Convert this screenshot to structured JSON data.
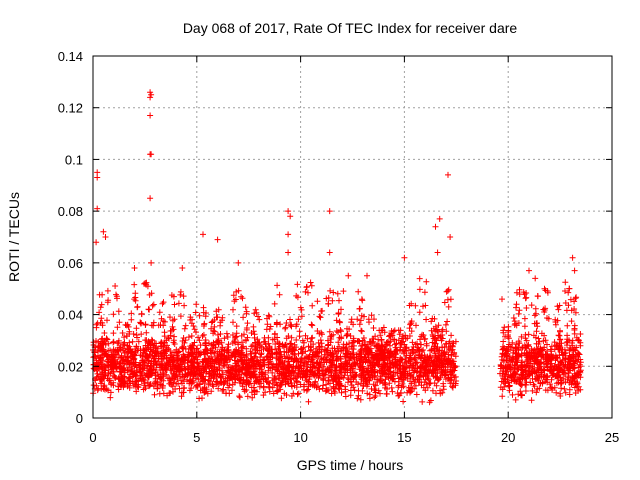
{
  "chart_data": {
    "type": "scatter",
    "title": "Day 068 of 2017, Rate Of TEC Index for receiver dare",
    "xlabel": "GPS time / hours",
    "ylabel": "ROTI / TECUs",
    "xlim": [
      0,
      25
    ],
    "ylim": [
      0,
      0.14
    ],
    "xticks": [
      "0",
      "5",
      "10",
      "15",
      "20",
      "25"
    ],
    "yticks": [
      "0",
      "0.02",
      "0.04",
      "0.06",
      "0.08",
      "0.1",
      "0.12",
      "0.14"
    ],
    "grid": true,
    "marker": "+",
    "color": "#ff0000",
    "data_gap_hours": [
      17.5,
      19.6
    ],
    "dense_band": {
      "y_low": 0.005,
      "y_high": 0.03
    },
    "notable_points": [
      {
        "x": 0.2,
        "y": 0.095
      },
      {
        "x": 0.2,
        "y": 0.093
      },
      {
        "x": 0.2,
        "y": 0.081
      },
      {
        "x": 0.15,
        "y": 0.068
      },
      {
        "x": 0.5,
        "y": 0.072
      },
      {
        "x": 0.6,
        "y": 0.07
      },
      {
        "x": 2.75,
        "y": 0.126
      },
      {
        "x": 2.75,
        "y": 0.124
      },
      {
        "x": 2.8,
        "y": 0.125
      },
      {
        "x": 2.75,
        "y": 0.117
      },
      {
        "x": 2.75,
        "y": 0.102
      },
      {
        "x": 2.8,
        "y": 0.102
      },
      {
        "x": 2.75,
        "y": 0.085
      },
      {
        "x": 2.8,
        "y": 0.06
      },
      {
        "x": 2.0,
        "y": 0.058
      },
      {
        "x": 4.3,
        "y": 0.058
      },
      {
        "x": 5.3,
        "y": 0.071
      },
      {
        "x": 6.0,
        "y": 0.069
      },
      {
        "x": 7.0,
        "y": 0.06
      },
      {
        "x": 9.4,
        "y": 0.08
      },
      {
        "x": 9.5,
        "y": 0.078
      },
      {
        "x": 9.4,
        "y": 0.071
      },
      {
        "x": 9.4,
        "y": 0.064
      },
      {
        "x": 11.4,
        "y": 0.08
      },
      {
        "x": 11.4,
        "y": 0.064
      },
      {
        "x": 12.3,
        "y": 0.055
      },
      {
        "x": 13.2,
        "y": 0.055
      },
      {
        "x": 15.0,
        "y": 0.062
      },
      {
        "x": 16.5,
        "y": 0.074
      },
      {
        "x": 16.7,
        "y": 0.077
      },
      {
        "x": 17.1,
        "y": 0.094
      },
      {
        "x": 17.2,
        "y": 0.07
      },
      {
        "x": 16.6,
        "y": 0.064
      },
      {
        "x": 21.0,
        "y": 0.057
      },
      {
        "x": 21.3,
        "y": 0.054
      },
      {
        "x": 23.1,
        "y": 0.062
      },
      {
        "x": 23.2,
        "y": 0.057
      },
      {
        "x": 19.7,
        "y": 0.046
      },
      {
        "x": 20.4,
        "y": 0.044
      }
    ]
  }
}
